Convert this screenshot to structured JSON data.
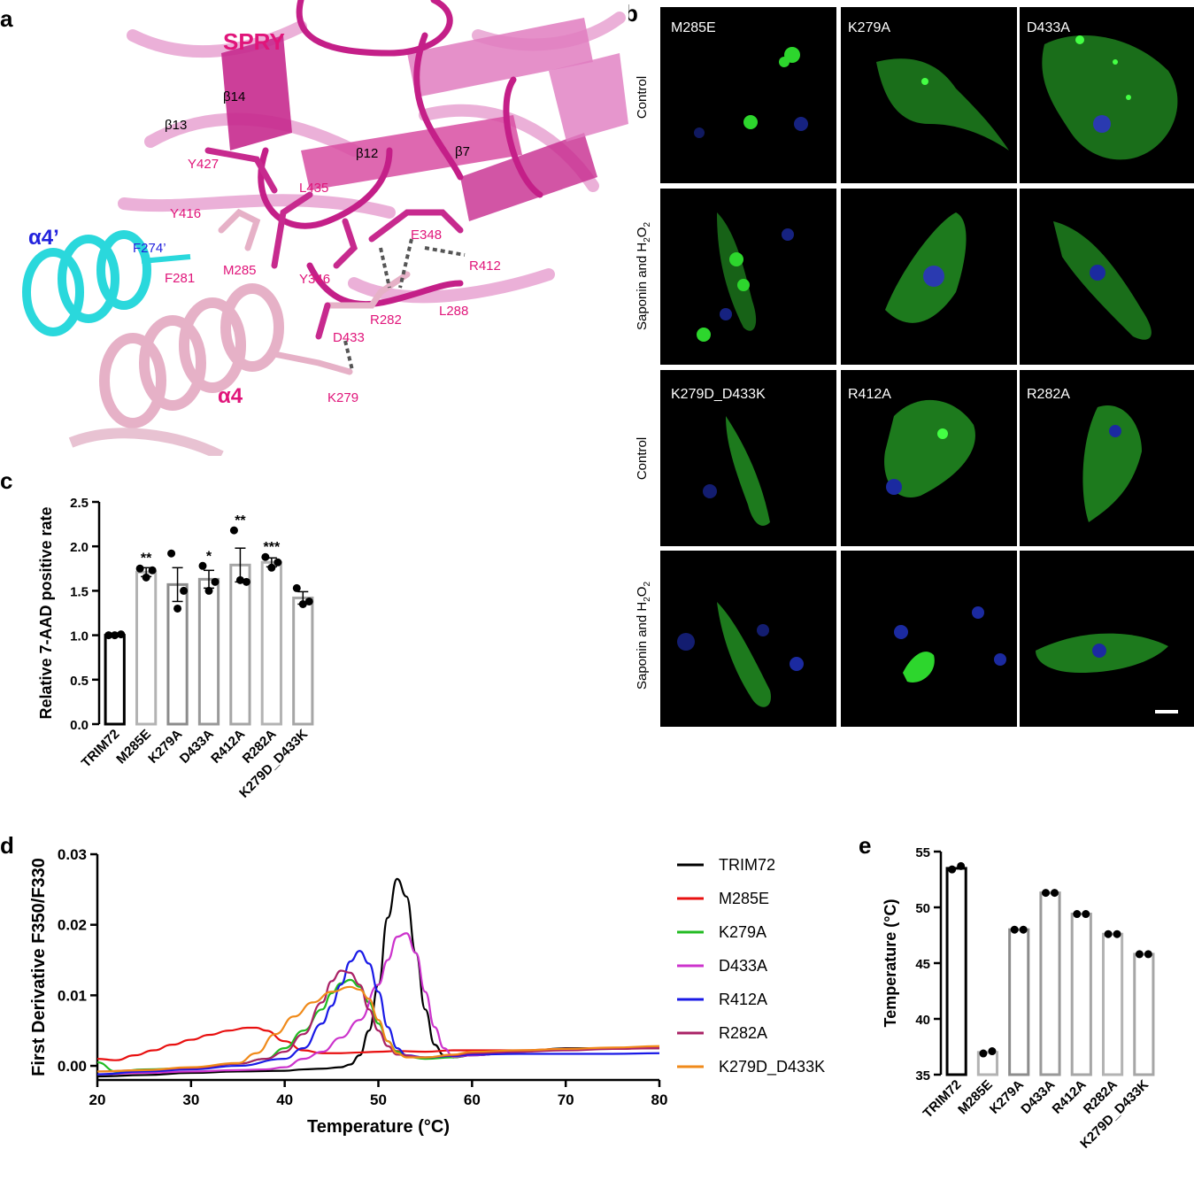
{
  "panel_labels": {
    "a": "a",
    "b": "b",
    "c": "c",
    "d": "d",
    "e": "e"
  },
  "structure": {
    "domain_label": "SPRY",
    "helix_alpha4_prime": "α4’",
    "helix_alpha4": "α4",
    "strand_labels": [
      "β14",
      "β13",
      "β12",
      "β7"
    ],
    "residue_labels": [
      "Y427",
      "L435",
      "Y416",
      "E348",
      "R412",
      "F274’",
      "F281",
      "M285",
      "Y346",
      "R282",
      "L288",
      "D433",
      "K279"
    ],
    "colors": {
      "spry": "#d4288a",
      "spry_light": "#e99bd0",
      "alpha4_prime": "#2ee0e0",
      "alpha4": "#e6b1c7",
      "alpha4_prime_label": "#2222dd",
      "residue_label": "#e0157a"
    }
  },
  "microscopy": {
    "row_labels": [
      "Control",
      "Saponin and H2O2",
      "Control",
      "Saponin and H2O2"
    ],
    "panel_titles": [
      "M285E",
      "K279A",
      "D433A",
      "K279D_D433K",
      "R412A",
      "R282A"
    ],
    "channel_colors": {
      "membrane": "#22cc22",
      "nucleus": "#2233bb"
    }
  },
  "chart_data": [
    {
      "id": "c",
      "type": "bar",
      "ylabel": "Relative 7-AAD positive rate",
      "ylim": [
        0,
        2.5
      ],
      "yticks": [
        "0.0",
        "0.5",
        "1.0",
        "1.5",
        "2.0",
        "2.5"
      ],
      "categories": [
        "TRIM72",
        "M285E",
        "K279A",
        "D433A",
        "R412A",
        "R282A",
        "K279D_D433K"
      ],
      "values": [
        1.0,
        1.71,
        1.57,
        1.63,
        1.79,
        1.82,
        1.42
      ],
      "sem": [
        0.01,
        0.05,
        0.19,
        0.1,
        0.19,
        0.05,
        0.07
      ],
      "points": [
        [
          1.0,
          1.0,
          1.01
        ],
        [
          1.75,
          1.65,
          1.73
        ],
        [
          1.92,
          1.3,
          1.5
        ],
        [
          1.78,
          1.5,
          1.6
        ],
        [
          2.18,
          1.62,
          1.6
        ],
        [
          1.88,
          1.76,
          1.82
        ],
        [
          1.53,
          1.35,
          1.38
        ]
      ],
      "significance": [
        "",
        "**",
        "",
        "*",
        "**",
        "***",
        ""
      ],
      "bar_colors": [
        "#000000",
        "#b3b3b3",
        "#8c8c8c",
        "#999999",
        "#a6a6a6",
        "#b3b3b3",
        "#a6a6a6"
      ]
    },
    {
      "id": "d",
      "type": "line",
      "xlabel": "Temperature (°C)",
      "ylabel": "First Derivative  F350/F330",
      "xlim": [
        20,
        80
      ],
      "ylim": [
        -0.002,
        0.03
      ],
      "xticks": [
        "20",
        "30",
        "40",
        "50",
        "60",
        "70",
        "80"
      ],
      "yticks": [
        "0.00",
        "0.01",
        "0.02",
        "0.03"
      ],
      "legend": "right",
      "series": [
        {
          "name": "TRIM72",
          "color": "#000000",
          "x": [
            20,
            25,
            30,
            35,
            40,
            42,
            44,
            46,
            47,
            48,
            49,
            50,
            51,
            52,
            53,
            54,
            55,
            56,
            57,
            58,
            60,
            65,
            70,
            75,
            80
          ],
          "y": [
            -0.0015,
            -0.0013,
            -0.001,
            -0.0008,
            -0.0007,
            -0.0005,
            -0.0004,
            -0.0002,
            0.0002,
            0.0015,
            0.005,
            0.0115,
            0.021,
            0.0265,
            0.024,
            0.016,
            0.008,
            0.003,
            0.0015,
            0.0012,
            0.0015,
            0.002,
            0.0025,
            0.0025,
            0.0025
          ]
        },
        {
          "name": "M285E",
          "color": "#e81010",
          "x": [
            20,
            22,
            24,
            26,
            28,
            30,
            32,
            34,
            36,
            37,
            38,
            40,
            42,
            44,
            46,
            48,
            50,
            52,
            55,
            58,
            60,
            65,
            70,
            75,
            80
          ],
          "y": [
            0.001,
            0.0008,
            0.0015,
            0.0022,
            0.003,
            0.0037,
            0.0044,
            0.005,
            0.0054,
            0.0054,
            0.005,
            0.0035,
            0.0022,
            0.0018,
            0.0018,
            0.0019,
            0.002,
            0.0021,
            0.002,
            0.0022,
            0.0022,
            0.0022,
            0.0024,
            0.0024,
            0.0026
          ]
        },
        {
          "name": "K279A",
          "color": "#22bb22",
          "x": [
            20,
            22,
            25,
            30,
            35,
            38,
            40,
            42,
            44,
            45,
            46,
            47,
            48,
            49,
            50,
            51,
            52,
            53,
            55,
            58,
            60,
            65,
            70,
            75,
            80
          ],
          "y": [
            0.0005,
            -0.0008,
            -0.0005,
            -0.0003,
            0.0003,
            0.001,
            0.0025,
            0.005,
            0.008,
            0.0103,
            0.0117,
            0.0122,
            0.0112,
            0.009,
            0.006,
            0.0035,
            0.002,
            0.0013,
            0.001,
            0.0012,
            0.0016,
            0.0021,
            0.0023,
            0.0024,
            0.0026
          ]
        },
        {
          "name": "D433A",
          "color": "#cc33cc",
          "x": [
            20,
            25,
            30,
            35,
            38,
            40,
            42,
            44,
            46,
            48,
            50,
            51,
            52,
            53,
            54,
            55,
            56,
            57,
            58,
            60,
            65,
            70,
            75,
            80
          ],
          "y": [
            -0.0012,
            -0.001,
            -0.0008,
            -0.0006,
            -0.0005,
            -0.0002,
            0.001,
            0.002,
            0.004,
            0.0065,
            0.0115,
            0.015,
            0.0183,
            0.0188,
            0.016,
            0.0105,
            0.0055,
            0.0025,
            0.0013,
            0.0015,
            0.002,
            0.0024,
            0.0024,
            0.0026
          ]
        },
        {
          "name": "R412A",
          "color": "#1a1ae6",
          "x": [
            20,
            25,
            30,
            35,
            40,
            42,
            44,
            45,
            46,
            47,
            48,
            49,
            50,
            51,
            52,
            53,
            55,
            58,
            60,
            65,
            70,
            75,
            80
          ],
          "y": [
            -0.0012,
            -0.0008,
            -0.0005,
            0.0,
            0.001,
            0.0025,
            0.006,
            0.0085,
            0.0115,
            0.0148,
            0.0163,
            0.0145,
            0.0105,
            0.0055,
            0.0025,
            0.0015,
            0.0012,
            0.0014,
            0.0016,
            0.0017,
            0.0017,
            0.0017,
            0.0018
          ]
        },
        {
          "name": "R282A",
          "color": "#aa2266",
          "x": [
            20,
            25,
            30,
            35,
            38,
            40,
            42,
            44,
            45,
            46,
            47,
            48,
            49,
            50,
            51,
            52,
            55,
            58,
            60,
            65,
            70,
            75,
            80
          ],
          "y": [
            -0.0008,
            -0.0006,
            -0.0003,
            0.0003,
            0.001,
            0.002,
            0.0045,
            0.009,
            0.012,
            0.0135,
            0.0132,
            0.0115,
            0.008,
            0.005,
            0.0028,
            0.0016,
            0.0012,
            0.0015,
            0.0018,
            0.002,
            0.0022,
            0.0024,
            0.0025
          ]
        },
        {
          "name": "K279D_D433K",
          "color": "#f08a1a",
          "x": [
            20,
            25,
            30,
            35,
            37,
            39,
            41,
            43,
            45,
            47,
            48,
            49,
            50,
            51,
            52,
            53,
            55,
            58,
            60,
            65,
            70,
            75,
            80
          ],
          "y": [
            -0.0008,
            -0.0006,
            -0.0002,
            0.0004,
            0.0018,
            0.0045,
            0.007,
            0.009,
            0.0105,
            0.0112,
            0.0108,
            0.0095,
            0.0065,
            0.0035,
            0.0018,
            0.0012,
            0.0012,
            0.0016,
            0.002,
            0.0022,
            0.0024,
            0.0026,
            0.0028
          ]
        }
      ]
    },
    {
      "id": "e",
      "type": "bar",
      "ylabel": "Temperature (°C)",
      "ylim": [
        35,
        55
      ],
      "yticks": [
        "35",
        "40",
        "45",
        "50",
        "55"
      ],
      "categories": [
        "TRIM72",
        "M285E",
        "K279A",
        "D433A",
        "R412A",
        "R282A",
        "K279D_D433K"
      ],
      "values": [
        53.5,
        37.0,
        48.0,
        51.3,
        49.4,
        47.6,
        45.8
      ],
      "points": [
        [
          53.4,
          53.7
        ],
        [
          36.9,
          37.1
        ],
        [
          48.0,
          48.0
        ],
        [
          51.3,
          51.3
        ],
        [
          49.4,
          49.4
        ],
        [
          47.6,
          47.6
        ],
        [
          45.8,
          45.8
        ]
      ],
      "bar_colors": [
        "#000000",
        "#b3b3b3",
        "#8c8c8c",
        "#999999",
        "#a6a6a6",
        "#b3b3b3",
        "#a6a6a6"
      ]
    }
  ]
}
